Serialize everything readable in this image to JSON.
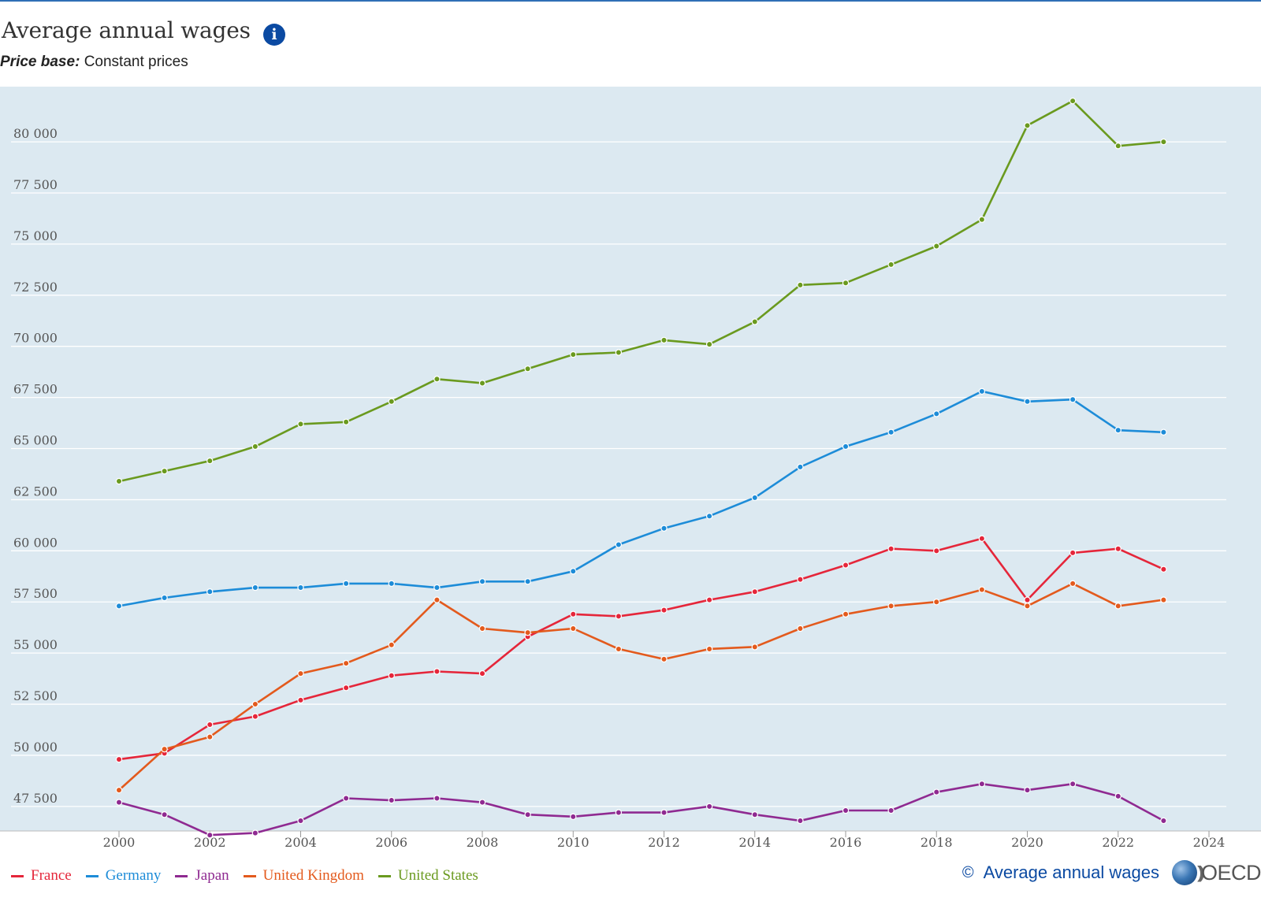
{
  "header": {
    "title": "Average annual wages",
    "info_icon": "info-icon",
    "price_base_label": "Price base:",
    "price_base_value": "Constant prices"
  },
  "footer": {
    "copyright_symbol": "©",
    "link_text": "Average annual wages",
    "logo_text": "OECD"
  },
  "chart_data": {
    "type": "line",
    "title": "Average annual wages",
    "subtitle": "Price base: Constant prices",
    "xlabel": "",
    "ylabel": "",
    "xlim": [
      2000,
      2024
    ],
    "ylim": [
      46300,
      82700
    ],
    "x_ticks": [
      2000,
      2002,
      2004,
      2006,
      2008,
      2010,
      2012,
      2014,
      2016,
      2018,
      2020,
      2022,
      2024
    ],
    "x_tick_labels": [
      "2000",
      "2002",
      "2004",
      "2006",
      "2008",
      "2010",
      "2012",
      "2014",
      "2016",
      "2018",
      "2020",
      "2022",
      "2024"
    ],
    "y_ticks": [
      47500,
      50000,
      52500,
      55000,
      57500,
      60000,
      62500,
      65000,
      67500,
      70000,
      72500,
      75000,
      77500,
      80000
    ],
    "y_tick_labels": [
      "47 500",
      "50 000",
      "52 500",
      "55 000",
      "57 500",
      "60 000",
      "62 500",
      "65 000",
      "67 500",
      "70 000",
      "72 500",
      "75 000",
      "77 500",
      "80 000"
    ],
    "grid": true,
    "legend_position": "bottom-left",
    "background": "#dce9f1",
    "x": [
      2000,
      2001,
      2002,
      2003,
      2004,
      2005,
      2006,
      2007,
      2008,
      2009,
      2010,
      2011,
      2012,
      2013,
      2014,
      2015,
      2016,
      2017,
      2018,
      2019,
      2020,
      2021,
      2022,
      2023
    ],
    "series": [
      {
        "name": "France",
        "color": "#e5263a",
        "values": [
          49800,
          50100,
          51500,
          51900,
          52700,
          53300,
          53900,
          54100,
          54000,
          55800,
          56900,
          56800,
          57100,
          57600,
          58000,
          58600,
          59300,
          60100,
          60000,
          60600,
          57600,
          59900,
          60100,
          59100
        ]
      },
      {
        "name": "Germany",
        "color": "#1d8cd8",
        "values": [
          57300,
          57700,
          58000,
          58200,
          58200,
          58400,
          58400,
          58200,
          58500,
          58500,
          59000,
          60300,
          61100,
          61700,
          62600,
          64100,
          65100,
          65800,
          66700,
          67800,
          67300,
          67400,
          65900,
          65800
        ]
      },
      {
        "name": "Japan",
        "color": "#8f2a91",
        "values": [
          47700,
          47100,
          46100,
          46200,
          46800,
          47900,
          47800,
          47900,
          47700,
          47100,
          47000,
          47200,
          47200,
          47500,
          47100,
          46800,
          47300,
          47300,
          48200,
          48600,
          48300,
          48600,
          48000,
          46800
        ]
      },
      {
        "name": "United Kingdom",
        "color": "#e35a1d",
        "values": [
          48300,
          50300,
          50900,
          52500,
          54000,
          54500,
          55400,
          57600,
          56200,
          56000,
          56200,
          55200,
          54700,
          55200,
          55300,
          56200,
          56900,
          57300,
          57500,
          58100,
          57300,
          58400,
          57300,
          57600
        ]
      },
      {
        "name": "United States",
        "color": "#6a9a1f",
        "values": [
          63400,
          63900,
          64400,
          65100,
          66200,
          66300,
          67300,
          68400,
          68200,
          68900,
          69600,
          69700,
          70300,
          70100,
          71200,
          73000,
          73100,
          74000,
          74900,
          76200,
          80800,
          82000,
          79800,
          80000
        ]
      }
    ]
  }
}
